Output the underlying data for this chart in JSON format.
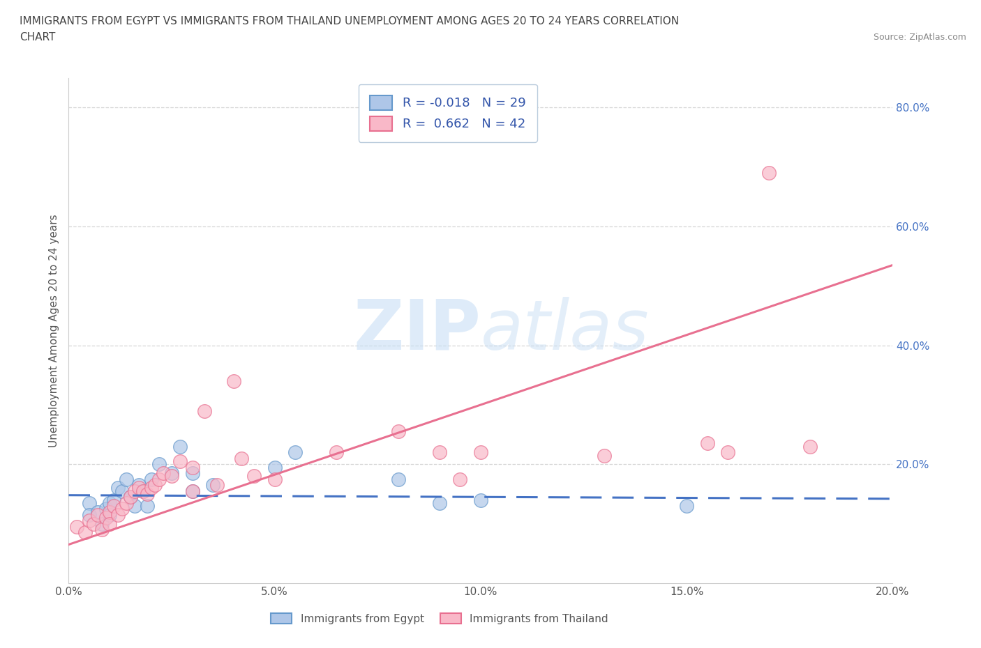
{
  "title_line1": "IMMIGRANTS FROM EGYPT VS IMMIGRANTS FROM THAILAND UNEMPLOYMENT AMONG AGES 20 TO 24 YEARS CORRELATION",
  "title_line2": "CHART",
  "source_text": "Source: ZipAtlas.com",
  "ylabel": "Unemployment Among Ages 20 to 24 years",
  "xlim": [
    0.0,
    0.2
  ],
  "ylim": [
    0.0,
    0.85
  ],
  "xtick_labels": [
    "0.0%",
    "5.0%",
    "10.0%",
    "15.0%",
    "20.0%"
  ],
  "xtick_vals": [
    0.0,
    0.05,
    0.1,
    0.15,
    0.2
  ],
  "ytick_labels": [
    "20.0%",
    "40.0%",
    "60.0%",
    "80.0%"
  ],
  "ytick_vals": [
    0.2,
    0.4,
    0.6,
    0.8
  ],
  "grid_color": "#cccccc",
  "background_color": "#ffffff",
  "watermark_text_zip": "ZIP",
  "watermark_text_atlas": "atlas",
  "egypt_color": "#aec6e8",
  "egypt_edge_color": "#6699cc",
  "thailand_color": "#f9b8c8",
  "thailand_edge_color": "#e87090",
  "egypt_line_color": "#4472c4",
  "thailand_line_color": "#e87090",
  "egypt_R": -0.018,
  "egypt_N": 29,
  "thailand_R": 0.662,
  "thailand_N": 42,
  "legend_text_color": "#3355aa",
  "egypt_scatter_x": [
    0.005,
    0.005,
    0.007,
    0.008,
    0.009,
    0.01,
    0.01,
    0.011,
    0.012,
    0.013,
    0.014,
    0.015,
    0.016,
    0.017,
    0.018,
    0.019,
    0.02,
    0.022,
    0.025,
    0.027,
    0.03,
    0.03,
    0.035,
    0.05,
    0.055,
    0.08,
    0.09,
    0.1,
    0.15
  ],
  "egypt_scatter_y": [
    0.135,
    0.115,
    0.12,
    0.1,
    0.125,
    0.135,
    0.115,
    0.14,
    0.16,
    0.155,
    0.175,
    0.145,
    0.13,
    0.165,
    0.155,
    0.13,
    0.175,
    0.2,
    0.185,
    0.23,
    0.185,
    0.155,
    0.165,
    0.195,
    0.22,
    0.175,
    0.135,
    0.14,
    0.13
  ],
  "thailand_scatter_x": [
    0.002,
    0.004,
    0.005,
    0.006,
    0.007,
    0.008,
    0.009,
    0.01,
    0.01,
    0.011,
    0.012,
    0.013,
    0.014,
    0.015,
    0.016,
    0.017,
    0.018,
    0.019,
    0.02,
    0.021,
    0.022,
    0.023,
    0.025,
    0.027,
    0.03,
    0.03,
    0.033,
    0.036,
    0.04,
    0.042,
    0.045,
    0.05,
    0.065,
    0.08,
    0.09,
    0.095,
    0.1,
    0.13,
    0.155,
    0.16,
    0.17,
    0.18
  ],
  "thailand_scatter_y": [
    0.095,
    0.085,
    0.105,
    0.1,
    0.115,
    0.09,
    0.11,
    0.12,
    0.1,
    0.13,
    0.115,
    0.125,
    0.135,
    0.145,
    0.155,
    0.16,
    0.155,
    0.15,
    0.16,
    0.165,
    0.175,
    0.185,
    0.18,
    0.205,
    0.195,
    0.155,
    0.29,
    0.165,
    0.34,
    0.21,
    0.18,
    0.175,
    0.22,
    0.255,
    0.22,
    0.175,
    0.22,
    0.215,
    0.235,
    0.22,
    0.69,
    0.23
  ],
  "egypt_line_x": [
    0.0,
    0.2
  ],
  "egypt_line_y": [
    0.148,
    0.142
  ],
  "thailand_line_x": [
    0.0,
    0.2
  ],
  "thailand_line_y": [
    0.065,
    0.535
  ]
}
